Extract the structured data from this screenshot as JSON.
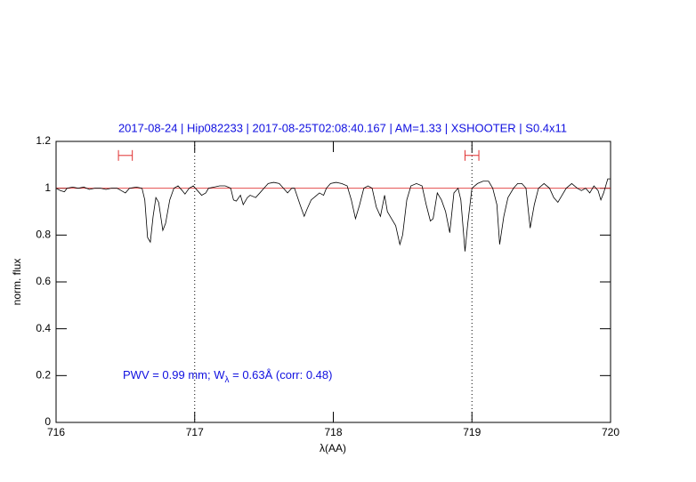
{
  "chart_data": {
    "type": "line",
    "title": "2017-08-24 | Hip082233 | 2017-08-25T02:08:40.167 | AM=1.33 | XSHOOTER | S0.4x11",
    "xlabel": "λ(AA)",
    "ylabel": "norm. flux",
    "annotation": [
      "PWV = 0.99 mm; W",
      "λ",
      " = 0.63Å (corr: 0.48)"
    ],
    "xlim": [
      716,
      720
    ],
    "ylim": [
      0,
      1.2
    ],
    "xticks": [
      716,
      717,
      718,
      719,
      720
    ],
    "yticks": [
      0,
      0.2,
      0.4,
      0.6,
      0.8,
      1,
      1.2
    ],
    "vlines": [
      717,
      719
    ],
    "continuum": {
      "value": 1,
      "color": "#e03030"
    },
    "ranges": {
      "color": "#e03030",
      "y": 1.14,
      "x": [
        [
          716.45,
          716.55
        ],
        [
          718.95,
          719.05
        ]
      ]
    },
    "series": [
      {
        "name": "spectrum",
        "color": "#000000",
        "x": [
          716.0,
          716.03,
          716.06,
          716.08,
          716.12,
          716.16,
          716.2,
          716.24,
          716.28,
          716.32,
          716.36,
          716.4,
          716.44,
          716.47,
          716.5,
          716.53,
          716.58,
          716.62,
          716.64,
          716.66,
          716.68,
          716.7,
          716.72,
          716.74,
          716.77,
          716.79,
          716.82,
          716.85,
          716.88,
          716.91,
          716.93,
          716.96,
          716.99,
          717.02,
          717.05,
          717.08,
          717.1,
          717.14,
          717.18,
          717.22,
          717.26,
          717.28,
          717.3,
          717.33,
          717.35,
          717.38,
          717.4,
          717.44,
          717.47,
          717.5,
          717.53,
          717.57,
          717.61,
          717.64,
          717.67,
          717.7,
          717.72,
          717.76,
          717.79,
          717.81,
          717.84,
          717.87,
          717.9,
          717.93,
          717.95,
          717.98,
          718.02,
          718.06,
          718.1,
          718.13,
          718.16,
          718.19,
          718.22,
          718.25,
          718.28,
          718.31,
          718.34,
          718.37,
          718.39,
          718.42,
          718.45,
          718.48,
          718.5,
          718.53,
          718.56,
          718.6,
          718.64,
          718.67,
          718.7,
          718.72,
          718.75,
          718.78,
          718.81,
          718.84,
          718.87,
          718.9,
          718.92,
          718.95,
          718.97,
          719.0,
          719.04,
          719.08,
          719.12,
          719.15,
          719.18,
          719.2,
          719.23,
          719.26,
          719.3,
          719.33,
          719.36,
          719.39,
          719.42,
          719.45,
          719.48,
          719.52,
          719.56,
          719.59,
          719.62,
          719.65,
          719.68,
          719.72,
          719.76,
          719.79,
          719.82,
          719.85,
          719.88,
          719.91,
          719.93,
          719.95,
          719.98,
          720.0
        ],
        "values": [
          1.0,
          0.99,
          0.985,
          1.0,
          1.005,
          1.0,
          1.005,
          0.995,
          1.0,
          1.0,
          0.995,
          1.0,
          1.0,
          0.99,
          0.98,
          1.0,
          1.005,
          1.0,
          0.95,
          0.79,
          0.77,
          0.88,
          0.96,
          0.94,
          0.82,
          0.85,
          0.95,
          1.0,
          1.01,
          0.99,
          0.975,
          1.0,
          1.01,
          0.99,
          0.97,
          0.98,
          1.0,
          1.005,
          1.01,
          1.01,
          1.0,
          0.95,
          0.945,
          0.97,
          0.93,
          0.96,
          0.97,
          0.96,
          0.98,
          1.0,
          1.02,
          1.025,
          1.02,
          1.0,
          0.98,
          1.0,
          1.0,
          0.93,
          0.88,
          0.91,
          0.95,
          0.965,
          0.98,
          0.97,
          1.0,
          1.02,
          1.025,
          1.02,
          1.01,
          0.95,
          0.87,
          0.93,
          1.0,
          1.01,
          1.0,
          0.92,
          0.88,
          0.97,
          0.9,
          0.87,
          0.84,
          0.76,
          0.8,
          0.95,
          1.01,
          1.02,
          1.01,
          0.93,
          0.86,
          0.87,
          0.98,
          0.95,
          0.9,
          0.81,
          0.98,
          1.0,
          0.95,
          0.73,
          0.85,
          1.0,
          1.02,
          1.03,
          1.03,
          1.0,
          0.93,
          0.76,
          0.88,
          0.96,
          1.0,
          1.02,
          1.02,
          1.0,
          0.83,
          0.93,
          1.0,
          1.02,
          1.0,
          0.96,
          0.94,
          0.97,
          1.0,
          1.02,
          1.0,
          0.99,
          1.0,
          0.98,
          1.01,
          0.99,
          0.95,
          0.98,
          1.04,
          1.04
        ]
      }
    ]
  }
}
